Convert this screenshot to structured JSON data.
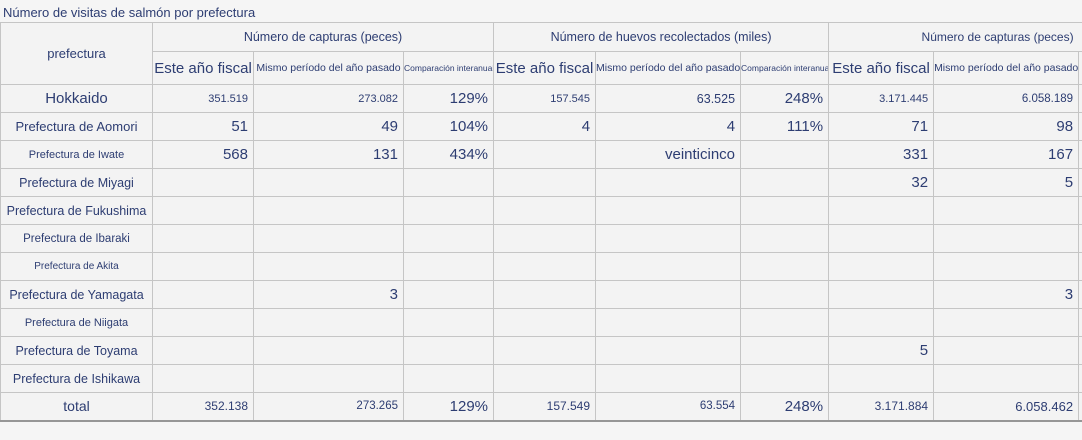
{
  "title": "Número de visitas de salmón por prefectura",
  "colors": {
    "text_navy": "#2d3d72",
    "background": "#f3f3f3",
    "border": "#c5c5c5"
  },
  "table": {
    "prefecture_header": "prefectura",
    "groups": [
      {
        "label": "Número de capturas (peces)",
        "sub": [
          "Este año fiscal",
          "Mismo período del año pasado",
          "Comparación interanual"
        ]
      },
      {
        "label": "Número de huevos recolectados (miles)",
        "sub": [
          "Este año fiscal",
          "Mismo período del año pasado",
          "Comparación interanual"
        ]
      },
      {
        "label": "Número de capturas (peces)",
        "sub": [
          "Este año fiscal",
          "Mismo período del año pasado",
          ""
        ]
      }
    ],
    "rows": [
      {
        "label": "Hokkaido",
        "cells": [
          "351.519",
          "273.082",
          "129%",
          "157.545",
          "63.525",
          "248%",
          "3.171.445",
          "6.058.189",
          ""
        ]
      },
      {
        "label": "Prefectura de Aomori",
        "cells": [
          "51",
          "49",
          "104%",
          "4",
          "4",
          "111%",
          "71",
          "98",
          ""
        ]
      },
      {
        "label": "Prefectura de Iwate",
        "cells": [
          "568",
          "131",
          "434%",
          "",
          "veinticinco",
          "",
          "331",
          "167",
          ""
        ]
      },
      {
        "label": "Prefectura de Miyagi",
        "cells": [
          "",
          "",
          "",
          "",
          "",
          "",
          "32",
          "5",
          ""
        ]
      },
      {
        "label": "Prefectura de Fukushima",
        "cells": [
          "",
          "",
          "",
          "",
          "",
          "",
          "",
          "",
          ""
        ]
      },
      {
        "label": "Prefectura de Ibaraki",
        "cells": [
          "",
          "",
          "",
          "",
          "",
          "",
          "",
          "",
          ""
        ]
      },
      {
        "label": "Prefectura de Akita",
        "cells": [
          "",
          "",
          "",
          "",
          "",
          "",
          "",
          "",
          ""
        ]
      },
      {
        "label": "Prefectura de Yamagata",
        "cells": [
          "",
          "3",
          "",
          "",
          "",
          "",
          "",
          "3",
          ""
        ]
      },
      {
        "label": "Prefectura de Niigata",
        "cells": [
          "",
          "",
          "",
          "",
          "",
          "",
          "",
          "",
          ""
        ]
      },
      {
        "label": "Prefectura de Toyama",
        "cells": [
          "",
          "",
          "",
          "",
          "",
          "",
          "5",
          "",
          ""
        ]
      },
      {
        "label": "Prefectura de Ishikawa",
        "cells": [
          "",
          "",
          "",
          "",
          "",
          "",
          "",
          "",
          ""
        ]
      },
      {
        "label": "total",
        "cells": [
          "352.138",
          "273.265",
          "129%",
          "157.549",
          "63.554",
          "248%",
          "3.171.884",
          "6.058.462",
          ""
        ]
      }
    ]
  }
}
